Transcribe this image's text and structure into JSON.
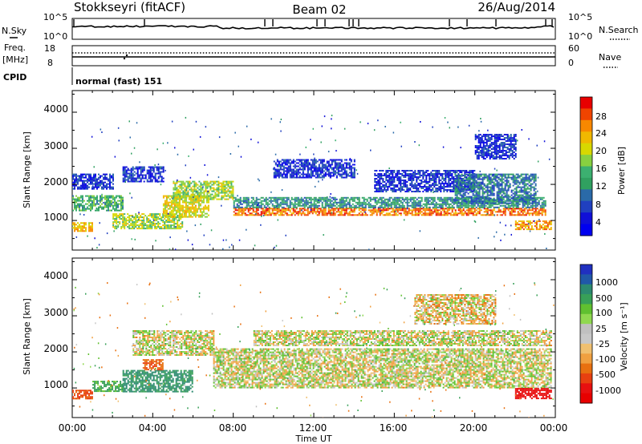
{
  "header": {
    "station": "Stokkseyri (fitACF)",
    "beam": "Beam 02",
    "date": "26/Aug/2014"
  },
  "panels": {
    "nsky": {
      "left_label": "N.Sky",
      "right_label": "N.Search",
      "left_ticks": [
        "10^5",
        "10^0"
      ],
      "right_ticks": [
        "10^5",
        "10^0"
      ]
    },
    "freq": {
      "left_label": "Freq.",
      "left_unit": "[MHz]",
      "left_ticks": [
        "18",
        "8"
      ],
      "right_label": "Nave",
      "right_ticks": [
        "60",
        "0"
      ]
    },
    "cpid": {
      "label": "CPID",
      "mode_text": "normal (fast) 151"
    }
  },
  "colorbars": {
    "power": {
      "label": "Power [dB]",
      "ticks": [
        "28",
        "24",
        "20",
        "16",
        "12",
        "8",
        "4"
      ],
      "colors": [
        "#e80000",
        "#f04400",
        "#f88800",
        "#f0b800",
        "#d8d800",
        "#88d040",
        "#3cb070",
        "#30a060",
        "#2a6aa8",
        "#2040c0",
        "#1010d8",
        "#0000f0"
      ]
    },
    "velocity": {
      "label": "Velocity [m s⁻¹]",
      "ticks": [
        "1000",
        "500",
        "100",
        "25",
        "-25",
        "-100",
        "-500",
        "-1000"
      ],
      "colors": [
        "#2030c0",
        "#2058a8",
        "#2c8a70",
        "#38a058",
        "#60c030",
        "#90d850",
        "#c0c0c0",
        "#c8c8c8",
        "#f0c070",
        "#f0a040",
        "#e87010",
        "#e84010",
        "#e81010",
        "#e80000"
      ]
    }
  },
  "axes": {
    "ylabel": "Slant Range [km]",
    "yticks": [
      "4000",
      "3000",
      "2000",
      "1000"
    ],
    "xticks": [
      "00:00",
      "04:00",
      "08:00",
      "12:00",
      "16:00",
      "20:00",
      "00:00"
    ],
    "xlabel": "Time UT"
  },
  "chart_data": {
    "type": "heatmap",
    "title": "Stokkseyri (fitACF) Beam 02 26/Aug/2014",
    "xlabel": "Time UT",
    "ylabel": "Slant Range [km]",
    "xlim": [
      0,
      24
    ],
    "ylim": [
      180,
      4600
    ],
    "panels": [
      {
        "name": "Power [dB]",
        "colorbar_ticks": [
          4,
          8,
          12,
          16,
          20,
          24,
          28
        ],
        "echo_bands": [
          {
            "t": [
              0.0,
              1.0
            ],
            "range_km": [
              700,
              950
            ],
            "level_dB": 22
          },
          {
            "t": [
              0.0,
              2.5
            ],
            "range_km": [
              1300,
              1700
            ],
            "level_dB": 14
          },
          {
            "t": [
              0.0,
              2.0
            ],
            "range_km": [
              1900,
              2300
            ],
            "level_dB": 6
          },
          {
            "t": [
              2.5,
              4.5
            ],
            "range_km": [
              2100,
              2500
            ],
            "level_dB": 6
          },
          {
            "t": [
              2.0,
              5.5
            ],
            "range_km": [
              800,
              1200
            ],
            "level_dB": 18
          },
          {
            "t": [
              4.5,
              6.8
            ],
            "range_km": [
              1100,
              1700
            ],
            "level_dB": 20
          },
          {
            "t": [
              5.0,
              8.0
            ],
            "range_km": [
              1600,
              2100
            ],
            "level_dB": 18
          },
          {
            "t": [
              8.0,
              23.5
            ],
            "range_km": [
              1150,
              1350
            ],
            "level_dB": 26
          },
          {
            "t": [
              8.0,
              23.5
            ],
            "range_km": [
              1350,
              1650
            ],
            "level_dB": 12
          },
          {
            "t": [
              10.0,
              14.0
            ],
            "range_km": [
              2200,
              2700
            ],
            "level_dB": 6
          },
          {
            "t": [
              15.0,
              20.0
            ],
            "range_km": [
              1800,
              2400
            ],
            "level_dB": 6
          },
          {
            "t": [
              19.0,
              23.0
            ],
            "range_km": [
              1500,
              2300
            ],
            "level_dB": 10
          },
          {
            "t": [
              20.0,
              22.0
            ],
            "range_km": [
              2700,
              3400
            ],
            "level_dB": 6
          },
          {
            "t": [
              22.0,
              23.8
            ],
            "range_km": [
              750,
              1000
            ],
            "level_dB": 24
          }
        ]
      },
      {
        "name": "Velocity [m s-1]",
        "colorbar_ticks": [
          -1000,
          -500,
          -100,
          -25,
          25,
          100,
          500,
          1000
        ],
        "echo_bands": [
          {
            "t": [
              0.0,
              1.0
            ],
            "range_km": [
              700,
              950
            ],
            "velocity_ms": -450
          },
          {
            "t": [
              1.0,
              2.5
            ],
            "range_km": [
              900,
              1200
            ],
            "velocity_ms": 200
          },
          {
            "t": [
              2.5,
              6.0
            ],
            "range_km": [
              900,
              1500
            ],
            "velocity_ms": 400
          },
          {
            "t": [
              3.0,
              7.0
            ],
            "range_km": [
              1900,
              2600
            ],
            "velocity_ms": 0
          },
          {
            "t": [
              3.5,
              4.5
            ],
            "range_km": [
              1500,
              1800
            ],
            "velocity_ms": -300
          },
          {
            "t": [
              7.0,
              23.8
            ],
            "range_km": [
              1000,
              2100
            ],
            "velocity_ms": 0
          },
          {
            "t": [
              9.0,
              23.8
            ],
            "range_km": [
              2200,
              2600
            ],
            "velocity_ms": 0
          },
          {
            "t": [
              22.0,
              23.8
            ],
            "range_km": [
              700,
              1000
            ],
            "velocity_ms": -800
          },
          {
            "t": [
              17.0,
              21.0
            ],
            "range_km": [
              2800,
              3600
            ],
            "velocity_ms": -50
          }
        ]
      }
    ]
  }
}
